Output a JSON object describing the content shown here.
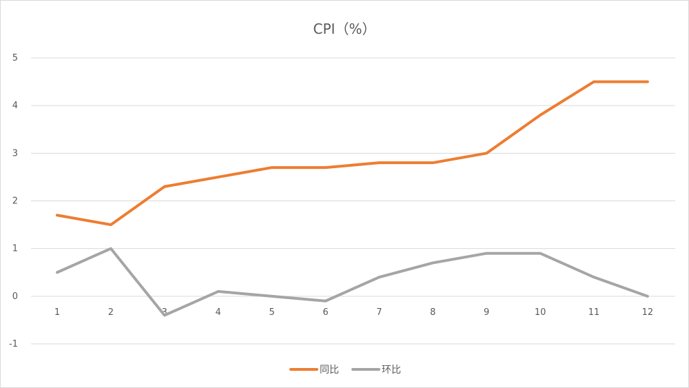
{
  "chart_data": {
    "type": "line",
    "title": "CPI（%）",
    "xlabel": "",
    "ylabel": "",
    "categories": [
      "1",
      "2",
      "3",
      "4",
      "5",
      "6",
      "7",
      "8",
      "9",
      "10",
      "11",
      "12"
    ],
    "ylim": [
      -1,
      5
    ],
    "yticks": [
      "5",
      "4",
      "3",
      "2",
      "1",
      "0",
      "-1"
    ],
    "grid": true,
    "legend_position": "bottom",
    "series": [
      {
        "name": "同比",
        "color": "#ed7d31",
        "values": [
          1.7,
          1.5,
          2.3,
          2.5,
          2.7,
          2.7,
          2.8,
          2.8,
          3.0,
          3.8,
          4.5,
          4.5
        ]
      },
      {
        "name": "环比",
        "color": "#a5a5a5",
        "values": [
          0.5,
          1.0,
          -0.4,
          0.1,
          0.0,
          -0.1,
          0.4,
          0.7,
          0.9,
          0.9,
          0.4,
          0.0
        ]
      }
    ]
  }
}
